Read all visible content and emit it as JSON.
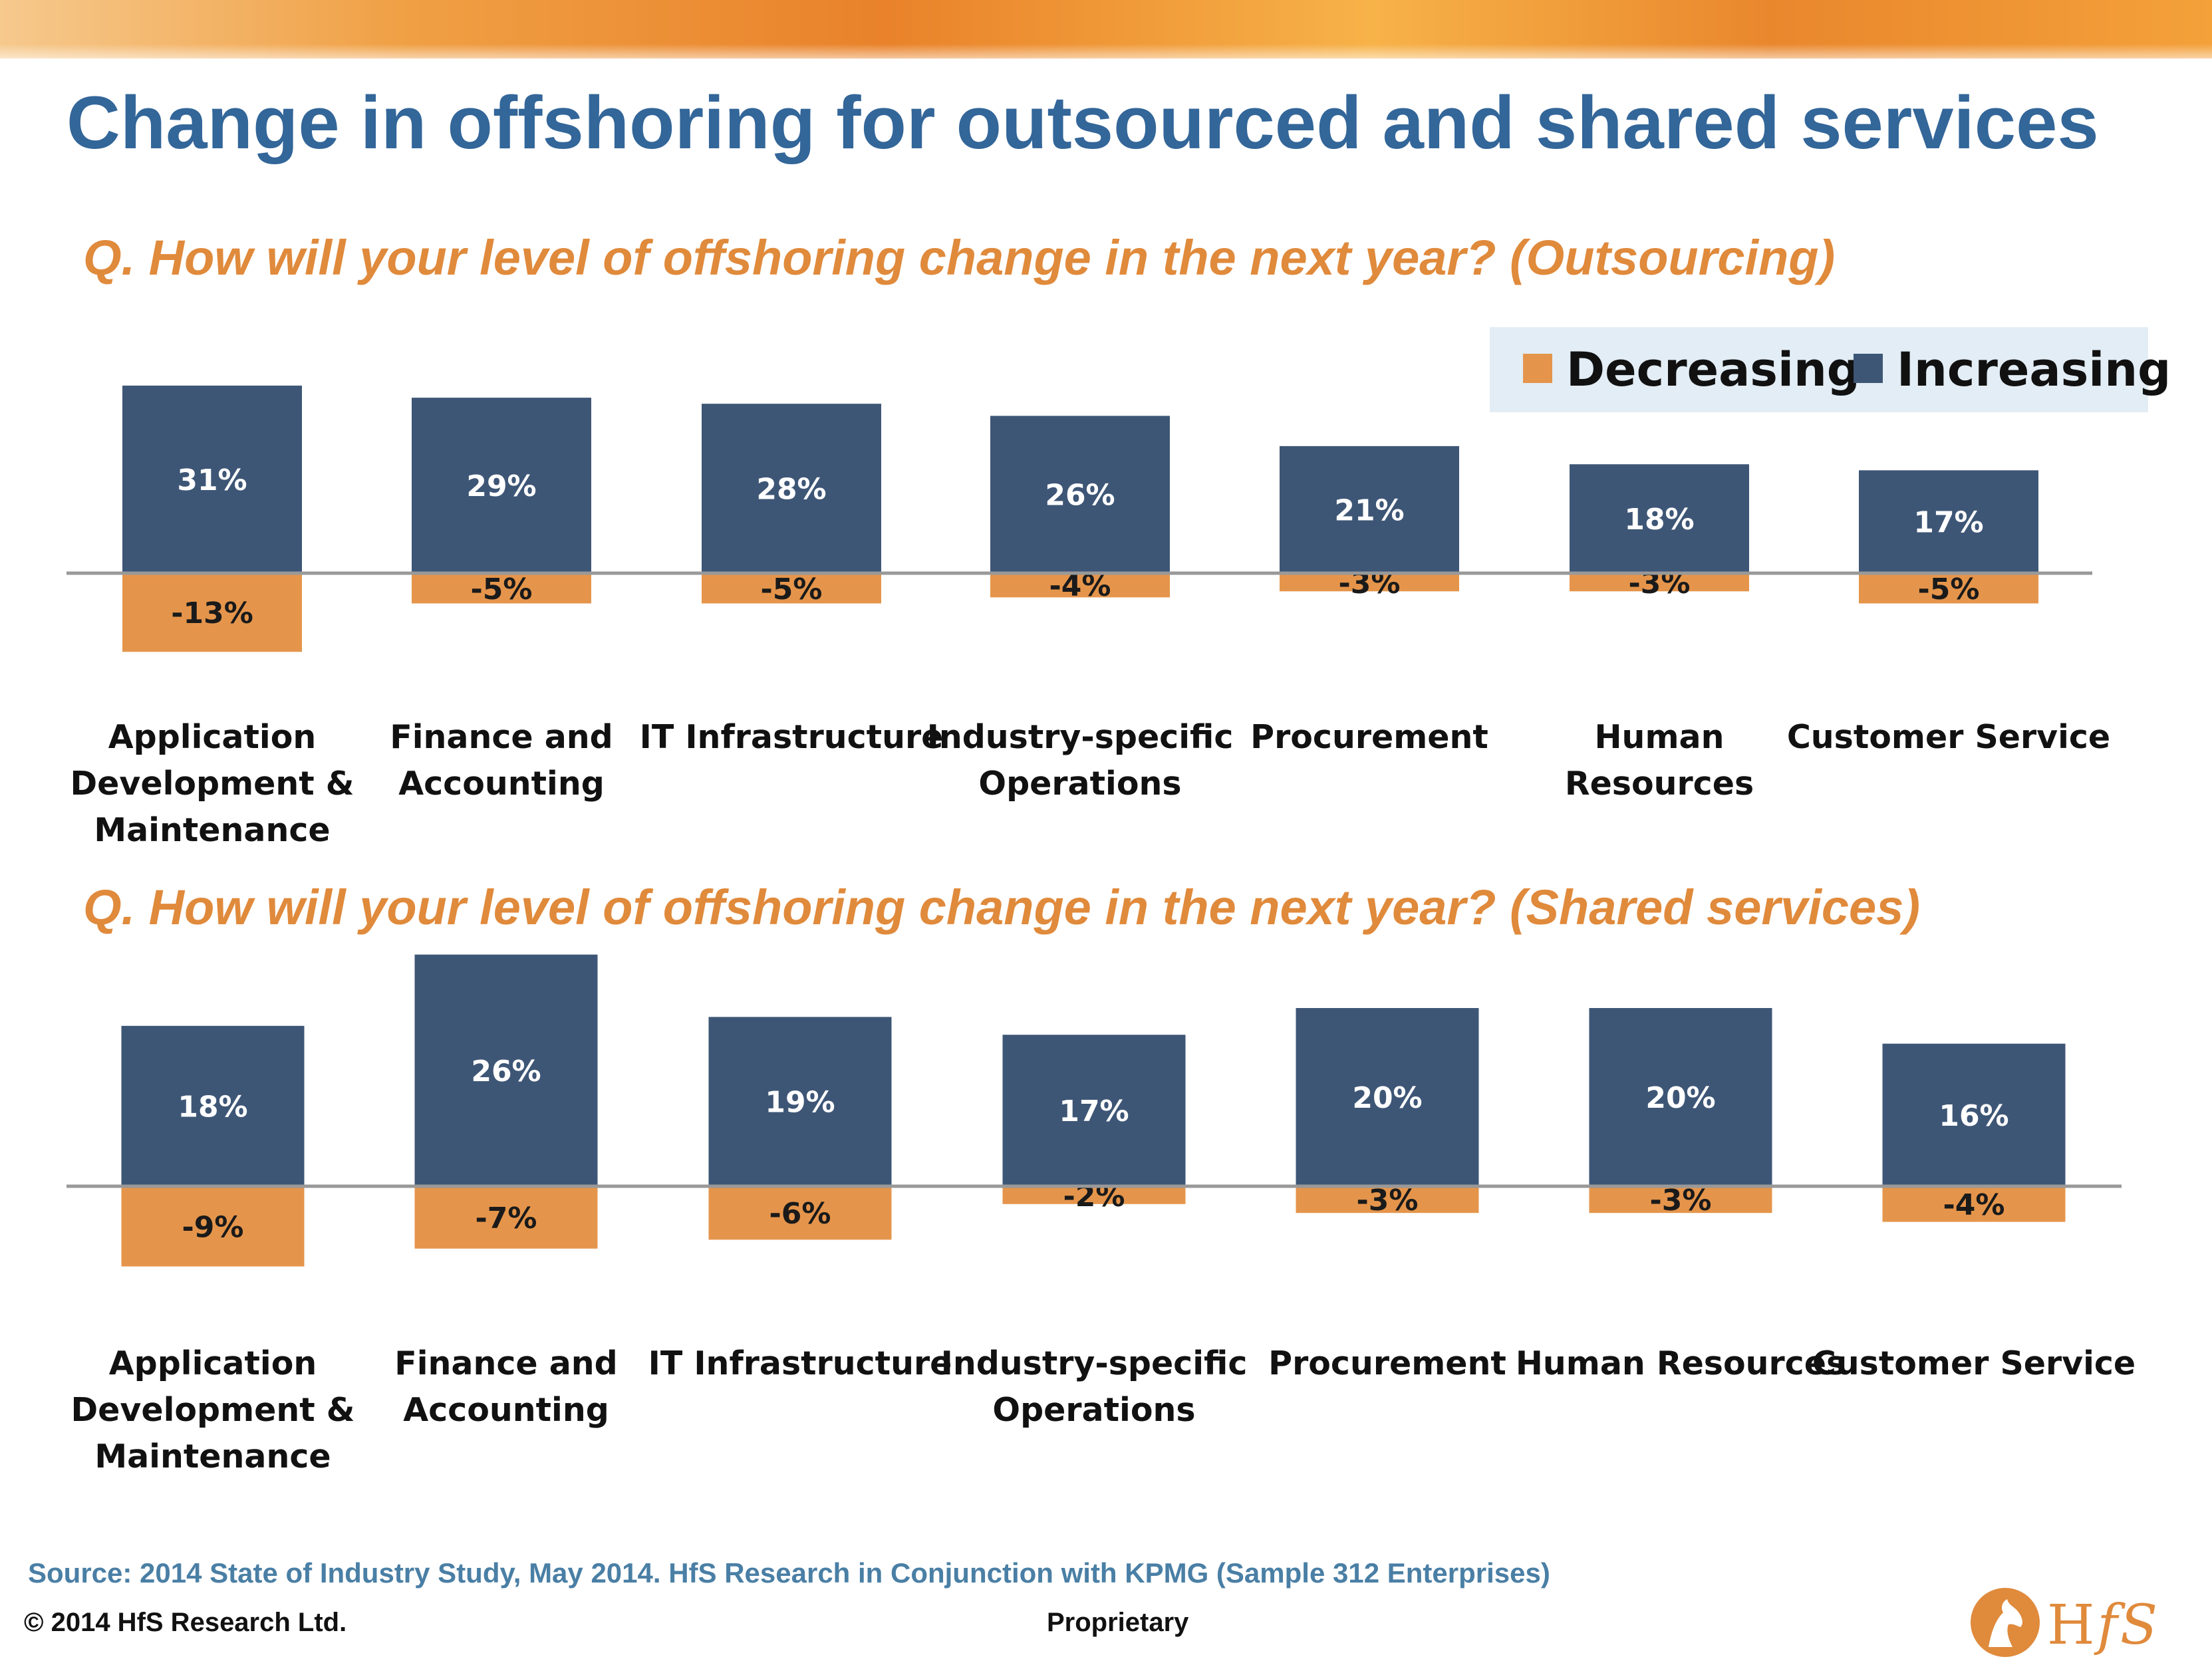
{
  "title": "Change in offshoring for outsourced and shared services",
  "legend": {
    "items": [
      {
        "label": "Decreasing",
        "color": "#e5954b"
      },
      {
        "label": "Increasing",
        "color": "#3e5676"
      }
    ]
  },
  "colors": {
    "increasing": "#3e5676",
    "decreasing": "#e5954b",
    "axis": "#999999",
    "legend_bg": "#e2edf5"
  },
  "chart_data": [
    {
      "type": "bar",
      "title": "Q. How will your level of offshoring change in the next year? (Outsourcing)",
      "categories": [
        [
          "Application",
          "Development &",
          "Maintenance"
        ],
        [
          "Finance and",
          "Accounting"
        ],
        [
          "IT Infrastructure"
        ],
        [
          "Industry-specific",
          "Operations"
        ],
        [
          "Procurement"
        ],
        [
          "Human",
          "Resources"
        ],
        [
          "Customer Service"
        ]
      ],
      "series": [
        {
          "name": "Increasing",
          "values": [
            31,
            29,
            28,
            26,
            21,
            18,
            17
          ],
          "labels": [
            "31%",
            "29%",
            "28%",
            "26%",
            "21%",
            "18%",
            "17%"
          ]
        },
        {
          "name": "Decreasing",
          "values": [
            -13,
            -5,
            -5,
            -4,
            -3,
            -3,
            -5
          ],
          "labels": [
            "-13%",
            "-5%",
            "-5%",
            "-4%",
            "-3%",
            "-3%",
            "-5%"
          ]
        }
      ],
      "stacked": true,
      "grid": false,
      "legend_position": "top-right"
    },
    {
      "type": "bar",
      "title": "Q. How will your level of offshoring change in the next year? (Shared services)",
      "categories": [
        [
          "Application",
          "Development &",
          "Maintenance"
        ],
        [
          "Finance and",
          "Accounting"
        ],
        [
          "IT Infrastructure"
        ],
        [
          "Industry-specific",
          "Operations"
        ],
        [
          "Procurement"
        ],
        [
          "Human Resources"
        ],
        [
          "Customer Service"
        ]
      ],
      "series": [
        {
          "name": "Increasing",
          "values": [
            18,
            26,
            19,
            17,
            20,
            20,
            16
          ],
          "labels": [
            "18%",
            "26%",
            "19%",
            "17%",
            "20%",
            "20%",
            "16%"
          ]
        },
        {
          "name": "Decreasing",
          "values": [
            -9,
            -7,
            -6,
            -2,
            -3,
            -3,
            -4
          ],
          "labels": [
            "-9%",
            "-7%",
            "-6%",
            "-2%",
            "-3%",
            "-3%",
            "-4%"
          ]
        }
      ],
      "stacked": true,
      "grid": false
    }
  ],
  "footer": {
    "source": "Source:  2014 State  of Industry Study, May 2014.  HfS Research in Conjunction with KPMG (Sample 312 Enterprises)",
    "copyright": "© 2014 HfS Research Ltd.",
    "proprietary": "Proprietary"
  },
  "logo": {
    "text": "H",
    "sub": "f",
    "end": "S",
    "icon": "horse-head-icon"
  }
}
